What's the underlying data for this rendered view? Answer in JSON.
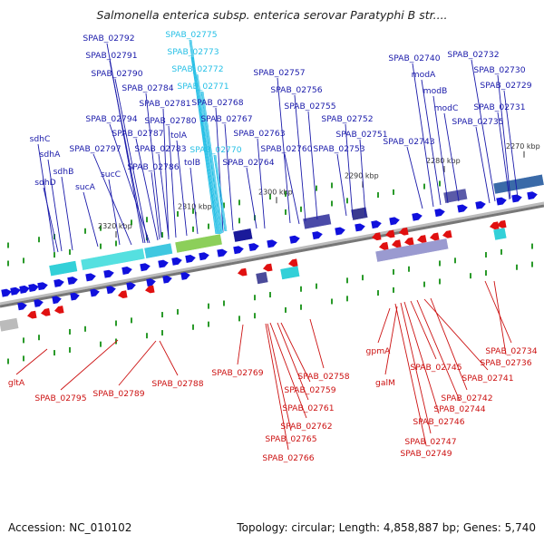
{
  "title": "Salmonella enterica subsp. enterica serovar Paratyphi B str....",
  "footer": {
    "accession": "Accession: NC_010102",
    "summary": "Topology: circular; Length: 4,858,887 bp; Genes: 5,740"
  },
  "colors": {
    "forward_label": "#1a1aaa",
    "reverse_label": "#cc1111",
    "highlight_label": "#27c0e6",
    "forward_arrow": "#1010dd",
    "reverse_arrow": "#e01010",
    "backbone": "#909090",
    "tick": "#2a9a2a"
  },
  "ticks": [
    "2320 kbp",
    "2310 kbp",
    "2300 kbp",
    "2290 kbp",
    "2280 kbp",
    "2270 kbp"
  ],
  "forward_labels": [
    "SPAB_02792",
    "SPAB_02791",
    "SPAB_02790",
    "SPAB_02784",
    "SPAB_02781",
    "SPAB_02794",
    "SPAB_02780",
    "SPAB_02787",
    "SPAB_02797",
    "SPAB_02783",
    "SPAB_02786",
    "SPAB_02768",
    "SPAB_02767",
    "SPAB_02763",
    "SPAB_02764",
    "SPAB_02757",
    "SPAB_02756",
    "SPAB_02755",
    "SPAB_02760",
    "SPAB_02752",
    "SPAB_02751",
    "SPAB_02753",
    "SPAB_02740",
    "SPAB_02743",
    "SPAB_02732",
    "SPAB_02730",
    "SPAB_02729",
    "SPAB_02731",
    "SPAB_02735",
    "sdhC",
    "sdhA",
    "sdhB",
    "sdhD",
    "sucA",
    "sucC",
    "tolA",
    "tolB",
    "modA",
    "modB",
    "modC"
  ],
  "highlight_labels": [
    "SPAB_02775",
    "SPAB_02773",
    "SPAB_02772",
    "SPAB_02771",
    "SPAB_02770"
  ],
  "reverse_labels": [
    "gltA",
    "SPAB_02795",
    "SPAB_02789",
    "SPAB_02788",
    "SPAB_02769",
    "SPAB_02758",
    "SPAB_02759",
    "SPAB_02761",
    "SPAB_02762",
    "SPAB_02765",
    "SPAB_02766",
    "gpmA",
    "galM",
    "SPAB_02745",
    "SPAB_02741",
    "SPAB_02742",
    "SPAB_02744",
    "SPAB_02746",
    "SPAB_02747",
    "SPAB_02749",
    "SPAB_02734",
    "SPAB_02736"
  ]
}
